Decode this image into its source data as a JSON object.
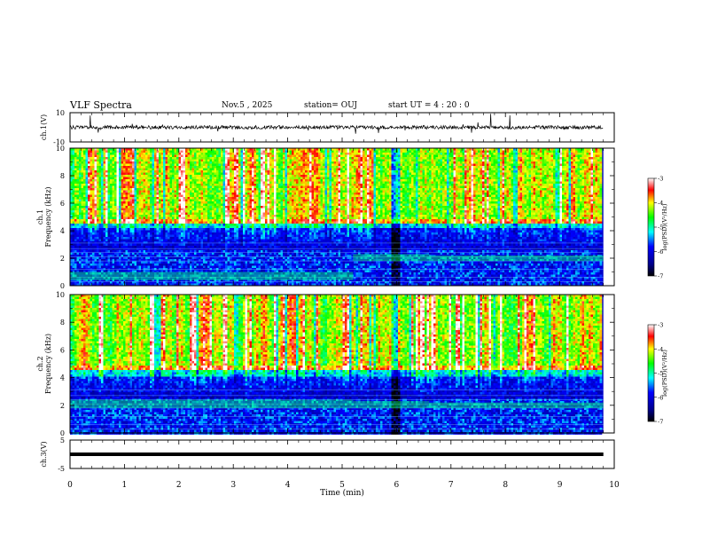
{
  "header": {
    "title": "VLF Spectra",
    "date": "Nov.5 , 2025",
    "station": "station= OUJ",
    "start": "start UT = 4 : 20 : 0"
  },
  "chart_data": [
    {
      "type": "line",
      "panel": "ch1-waveform",
      "ylabel": "ch.1(V)",
      "ylim": [
        -10,
        10
      ],
      "yticks": [
        "10",
        "-10"
      ],
      "xlim": [
        0,
        10
      ]
    },
    {
      "type": "heatmap",
      "panel": "ch1-spectrogram",
      "ylabel_line1": "ch.1",
      "ylabel_line2": "Frequency (kHz)",
      "ylim": [
        0,
        10
      ],
      "yticks": [
        "0",
        "2",
        "4",
        "6",
        "8",
        "10"
      ],
      "xlim": [
        0,
        10
      ],
      "data_end_min": 9.8,
      "colorbar": {
        "label": "log(PSD)(V²/Hz)",
        "range": [
          -7,
          -3
        ],
        "ticks": [
          "-3",
          "-4",
          "-5",
          "-6",
          "-7"
        ]
      },
      "colors": [
        "#00008b",
        "#0000ff",
        "#00ffff",
        "#00ff00",
        "#ffff00",
        "#ff0000"
      ],
      "regimes": [
        {
          "from": 0.0,
          "to": 5.2,
          "base_band_khz": [
            0.4,
            1.0
          ]
        },
        {
          "from": 5.2,
          "to": 6.6,
          "base_band_khz": [
            1.8,
            2.3
          ]
        },
        {
          "from": 6.6,
          "to": 9.8,
          "base_band_khz": [
            1.8,
            2.2
          ]
        }
      ]
    },
    {
      "type": "heatmap",
      "panel": "ch2-spectrogram",
      "ylabel_line1": "ch.2",
      "ylabel_line2": "Frequency (kHz)",
      "ylim": [
        0,
        10
      ],
      "yticks": [
        "0",
        "2",
        "4",
        "6",
        "8",
        "10"
      ],
      "xlim": [
        0,
        10
      ],
      "data_end_min": 9.8,
      "colorbar": {
        "label": "log(PSD)(V²/Hz)",
        "range": [
          -7,
          -3
        ],
        "ticks": [
          "-3",
          "-4",
          "-5",
          "-6",
          "-7"
        ]
      },
      "colors": [
        "#00008b",
        "#0000ff",
        "#00ffff",
        "#00ff00",
        "#ffff00",
        "#ff0000"
      ],
      "regimes": [
        {
          "from": 0.0,
          "to": 5.2,
          "base_band_khz": [
            1.8,
            2.4
          ]
        },
        {
          "from": 5.2,
          "to": 6.6,
          "base_band_khz": [
            1.8,
            2.3
          ]
        },
        {
          "from": 6.6,
          "to": 9.8,
          "base_band_khz": [
            1.8,
            2.2
          ]
        }
      ]
    },
    {
      "type": "line",
      "panel": "ch3-waveform",
      "ylabel": "ch.3(V)",
      "ylim": [
        -5,
        5
      ],
      "yticks": [
        "5",
        "-5"
      ],
      "constant_value": 0,
      "xlim": [
        0,
        10
      ]
    }
  ],
  "xaxis": {
    "label": "Time (min)",
    "ticks": [
      "0",
      "1",
      "2",
      "3",
      "4",
      "5",
      "6",
      "7",
      "8",
      "9",
      "10"
    ]
  }
}
